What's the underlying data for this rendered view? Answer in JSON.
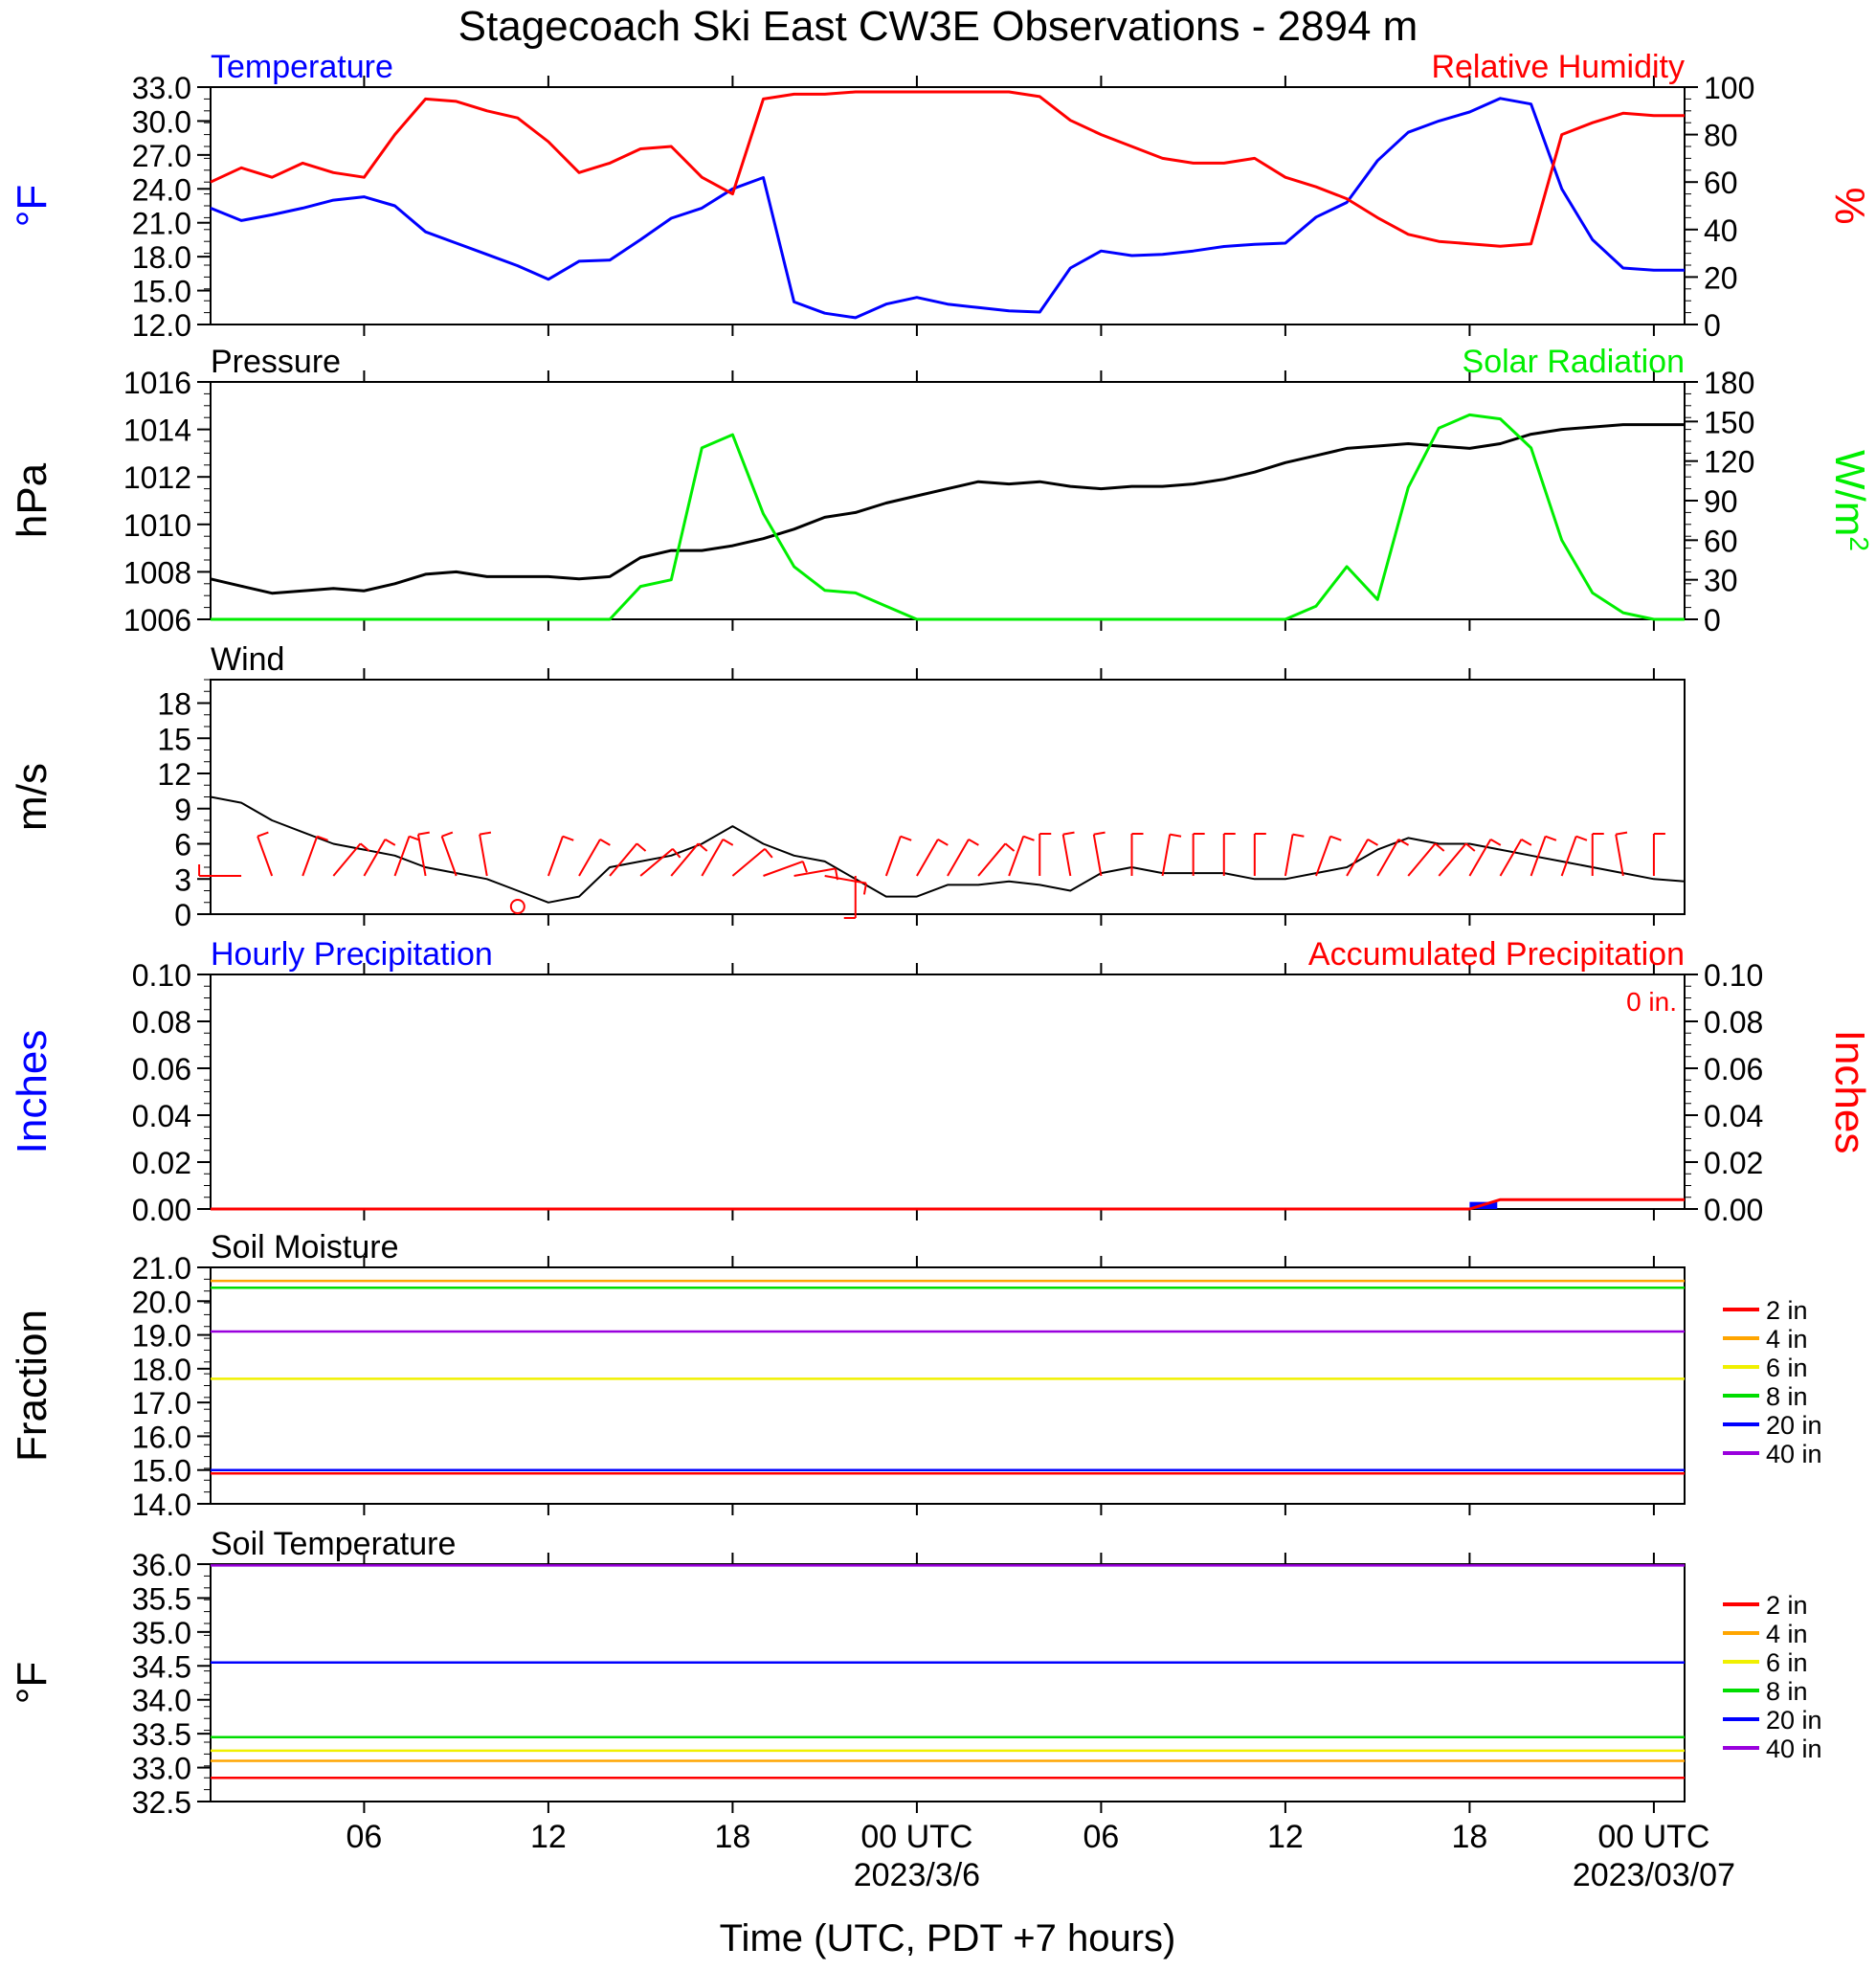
{
  "title": "Stagecoach Ski East CW3E Observations - 2894 m",
  "time_axis": {
    "tick_labels": [
      "06",
      "12",
      "18",
      "00 UTC",
      "06",
      "12",
      "18",
      "00 UTC"
    ],
    "date_labels": [
      "2023/3/6",
      "2023/03/07"
    ],
    "xlabel": "Time (UTC, PDT +7 hours)"
  },
  "colors": {
    "temperature": "#0000ff",
    "humidity": "#ff0000",
    "pressure": "#000000",
    "solar": "#00ee00",
    "wind": "#000000",
    "barbs": "#ff0000",
    "hourly_precip": "#0000ff",
    "accum_precip": "#ff0000",
    "d2in": "#ff0000",
    "d4in": "#ffa500",
    "d6in": "#f0f000",
    "d8in": "#00dd00",
    "d20in": "#0000ff",
    "d40in": "#9900dd"
  },
  "chart_data": [
    {
      "id": "temp_rh",
      "type": "line",
      "title_left": "Temperature",
      "title_right": "Relative Humidity",
      "ylabel_left": "°F",
      "ylabel_right": "%",
      "ylim_left": [
        12.0,
        33.0
      ],
      "yticks_left": [
        "12.0",
        "15.0",
        "18.0",
        "21.0",
        "24.0",
        "27.0",
        "30.0",
        "33.0"
      ],
      "ylim_right": [
        0,
        100
      ],
      "yticks_right": [
        "0",
        "20",
        "40",
        "60",
        "80",
        "100"
      ],
      "x_hours": [
        1,
        2,
        3,
        4,
        5,
        6,
        7,
        8,
        9,
        10,
        11,
        12,
        13,
        14,
        15,
        16,
        17,
        18,
        19,
        20,
        21,
        22,
        23,
        24,
        25,
        26,
        27,
        28,
        29,
        30,
        31,
        32,
        33,
        34,
        35,
        36,
        37,
        38,
        39,
        40,
        41,
        42,
        43,
        44,
        45,
        46,
        47,
        48,
        49
      ],
      "series": [
        {
          "name": "Temperature",
          "axis": "left",
          "values": [
            22.3,
            21.2,
            21.7,
            22.3,
            23.0,
            23.3,
            22.5,
            20.2,
            19.2,
            18.2,
            17.2,
            16.0,
            17.6,
            17.7,
            19.5,
            21.4,
            22.3,
            24.0,
            25.0,
            14.0,
            13.0,
            12.6,
            13.8,
            14.4,
            13.8,
            13.5,
            13.2,
            13.1,
            17.0,
            18.5,
            18.1,
            18.2,
            18.5,
            18.9,
            19.1,
            19.2,
            21.5,
            22.8,
            26.5,
            29.0,
            30.0,
            30.8,
            32.0,
            31.5,
            24.0,
            19.5,
            17.0,
            16.8,
            16.8
          ]
        },
        {
          "name": "Relative Humidity",
          "axis": "right",
          "values": [
            60,
            66,
            62,
            68,
            64,
            62,
            80,
            95,
            94,
            90,
            87,
            77,
            64,
            68,
            74,
            75,
            62,
            55,
            95,
            97,
            97,
            98,
            98,
            98,
            98,
            98,
            98,
            96,
            86,
            80,
            75,
            70,
            68,
            68,
            70,
            62,
            58,
            53,
            45,
            38,
            35,
            34,
            33,
            34,
            80,
            85,
            89,
            88,
            88
          ]
        }
      ]
    },
    {
      "id": "pressure_solar",
      "type": "line",
      "title_left": "Pressure",
      "title_right": "Solar Radiation",
      "ylabel_left": "hPa",
      "ylabel_right": "W/m",
      "ylabel_right_sup": "2",
      "ylim_left": [
        1006,
        1016
      ],
      "yticks_left": [
        "1006",
        "1008",
        "1010",
        "1012",
        "1014",
        "1016"
      ],
      "ylim_right": [
        0,
        180
      ],
      "yticks_right": [
        "0",
        "30",
        "60",
        "90",
        "120",
        "150",
        "180"
      ],
      "x_hours": [
        1,
        2,
        3,
        4,
        5,
        6,
        7,
        8,
        9,
        10,
        11,
        12,
        13,
        14,
        15,
        16,
        17,
        18,
        19,
        20,
        21,
        22,
        23,
        24,
        25,
        26,
        27,
        28,
        29,
        30,
        31,
        32,
        33,
        34,
        35,
        36,
        37,
        38,
        39,
        40,
        41,
        42,
        43,
        44,
        45,
        46,
        47,
        48,
        49
      ],
      "series": [
        {
          "name": "Pressure",
          "axis": "left",
          "values": [
            1007.7,
            1007.4,
            1007.1,
            1007.2,
            1007.3,
            1007.2,
            1007.5,
            1007.9,
            1008.0,
            1007.8,
            1007.8,
            1007.8,
            1007.7,
            1007.8,
            1008.6,
            1008.9,
            1008.9,
            1009.1,
            1009.4,
            1009.8,
            1010.3,
            1010.5,
            1010.9,
            1011.2,
            1011.5,
            1011.8,
            1011.7,
            1011.8,
            1011.6,
            1011.5,
            1011.6,
            1011.6,
            1011.7,
            1011.9,
            1012.2,
            1012.6,
            1012.9,
            1013.2,
            1013.3,
            1013.4,
            1013.3,
            1013.2,
            1013.4,
            1013.8,
            1014.0,
            1014.1,
            1014.2,
            1014.2,
            1014.2
          ]
        },
        {
          "name": "Solar Radiation",
          "axis": "right",
          "values": [
            0,
            0,
            0,
            0,
            0,
            0,
            0,
            0,
            0,
            0,
            0,
            0,
            0,
            0,
            25,
            30,
            130,
            140,
            80,
            40,
            22,
            20,
            10,
            0,
            0,
            0,
            0,
            0,
            0,
            0,
            0,
            0,
            0,
            0,
            0,
            0,
            10,
            40,
            15,
            100,
            145,
            155,
            152,
            130,
            60,
            20,
            5,
            0,
            0
          ]
        }
      ]
    },
    {
      "id": "wind",
      "type": "line",
      "title_left": "Wind",
      "ylabel_left": "m/s",
      "ylim_left": [
        0,
        20
      ],
      "yticks_left": [
        "0",
        "3",
        "6",
        "9",
        "12",
        "15",
        "18"
      ],
      "x_hours": [
        1,
        2,
        3,
        4,
        5,
        6,
        7,
        8,
        9,
        10,
        11,
        12,
        13,
        14,
        15,
        16,
        17,
        18,
        19,
        20,
        21,
        22,
        23,
        24,
        25,
        26,
        27,
        28,
        29,
        30,
        31,
        32,
        33,
        34,
        35,
        36,
        37,
        38,
        39,
        40,
        41,
        42,
        43,
        44,
        45,
        46,
        47,
        48,
        49
      ],
      "series": [
        {
          "name": "Wind",
          "axis": "left",
          "values": [
            10.0,
            9.5,
            8.0,
            7.0,
            6.0,
            5.5,
            5.0,
            4.0,
            3.5,
            3.0,
            2.0,
            1.0,
            1.5,
            4.0,
            4.5,
            5.0,
            6.0,
            7.5,
            6.0,
            5.0,
            4.5,
            3.0,
            1.5,
            1.5,
            2.5,
            2.5,
            2.8,
            2.5,
            2.0,
            3.5,
            4.0,
            3.5,
            3.5,
            3.5,
            3.0,
            3.0,
            3.5,
            4.0,
            5.5,
            6.5,
            6.0,
            6.0,
            5.5,
            5.0,
            4.5,
            4.0,
            3.5,
            3.0,
            2.8
          ]
        }
      ],
      "barbs": {
        "x_hours": [
          2,
          3,
          4,
          5,
          6,
          7,
          8,
          9,
          10,
          11,
          12,
          13,
          14,
          15,
          16,
          17,
          18,
          19,
          20,
          21,
          22,
          23,
          24,
          25,
          26,
          27,
          28,
          29,
          30,
          31,
          32,
          33,
          34,
          35,
          36,
          37,
          38,
          39,
          40,
          41,
          42,
          43,
          44,
          45,
          46,
          47,
          48
        ],
        "speed": [
          5,
          6,
          6,
          6,
          4,
          5,
          3,
          2,
          2,
          0,
          1,
          2,
          3,
          4,
          5,
          6,
          6,
          5,
          5,
          4,
          3,
          3,
          3,
          3,
          3,
          2,
          2,
          3,
          3,
          3,
          3,
          3,
          3,
          3,
          3,
          3,
          4,
          4,
          5,
          5,
          5,
          5,
          5,
          5,
          4,
          4,
          4
        ],
        "direction": [
          90,
          160,
          200,
          220,
          210,
          200,
          170,
          160,
          170,
          0,
          200,
          210,
          220,
          230,
          220,
          210,
          230,
          250,
          260,
          280,
          0,
          200,
          210,
          210,
          220,
          200,
          180,
          170,
          170,
          180,
          190,
          180,
          180,
          180,
          190,
          200,
          210,
          210,
          220,
          220,
          210,
          210,
          200,
          200,
          180,
          170,
          180
        ]
      }
    },
    {
      "id": "precip",
      "type": "bar",
      "title_left": "Hourly Precipitation",
      "title_right": "Accumulated Precipitation",
      "annotation": "0 in.",
      "ylabel_left": "Inches",
      "ylabel_right": "Inches",
      "ylim_left": [
        0,
        0.1
      ],
      "yticks_left": [
        "0.00",
        "0.02",
        "0.04",
        "0.06",
        "0.08",
        "0.10"
      ],
      "ylim_right": [
        0,
        0.1
      ],
      "yticks_right": [
        "0.00",
        "0.02",
        "0.04",
        "0.06",
        "0.08",
        "0.10"
      ],
      "hourly_x_hours": [
        42
      ],
      "hourly_values": [
        0.003
      ],
      "accum_x_hours": [
        1,
        42,
        43,
        49
      ],
      "accum_values": [
        0.0,
        0.0,
        0.004,
        0.004
      ]
    },
    {
      "id": "soil_moisture",
      "type": "line",
      "title_left": "Soil Moisture",
      "ylabel_left": "Fraction",
      "ylim_left": [
        14.0,
        21.0
      ],
      "yticks_left": [
        "14.0",
        "15.0",
        "16.0",
        "17.0",
        "18.0",
        "19.0",
        "20.0",
        "21.0"
      ],
      "x_range_hours": [
        1,
        49
      ],
      "series": [
        {
          "name": "2 in",
          "values": [
            14.9,
            14.9
          ]
        },
        {
          "name": "4 in",
          "values": [
            20.6,
            20.6
          ]
        },
        {
          "name": "6 in",
          "values": [
            17.7,
            17.7
          ]
        },
        {
          "name": "8 in",
          "values": [
            20.4,
            20.4
          ]
        },
        {
          "name": "20 in",
          "values": [
            15.0,
            15.0
          ]
        },
        {
          "name": "40 in",
          "values": [
            19.1,
            19.1
          ]
        }
      ]
    },
    {
      "id": "soil_temperature",
      "type": "line",
      "title_left": "Soil Temperature",
      "ylabel_left": "°F",
      "ylim_left": [
        32.5,
        36.0
      ],
      "yticks_left": [
        "32.5",
        "33.0",
        "33.5",
        "34.0",
        "34.5",
        "35.0",
        "35.5",
        "36.0"
      ],
      "x_range_hours": [
        1,
        49
      ],
      "series": [
        {
          "name": "2 in",
          "values": [
            32.85,
            32.85
          ]
        },
        {
          "name": "4 in",
          "values": [
            33.1,
            33.1
          ]
        },
        {
          "name": "6 in",
          "values": [
            33.25,
            33.25
          ]
        },
        {
          "name": "8 in",
          "values": [
            33.45,
            33.45
          ]
        },
        {
          "name": "20 in",
          "values": [
            34.55,
            34.55
          ]
        },
        {
          "name": "40 in",
          "values": [
            35.98,
            35.98
          ]
        }
      ]
    }
  ]
}
